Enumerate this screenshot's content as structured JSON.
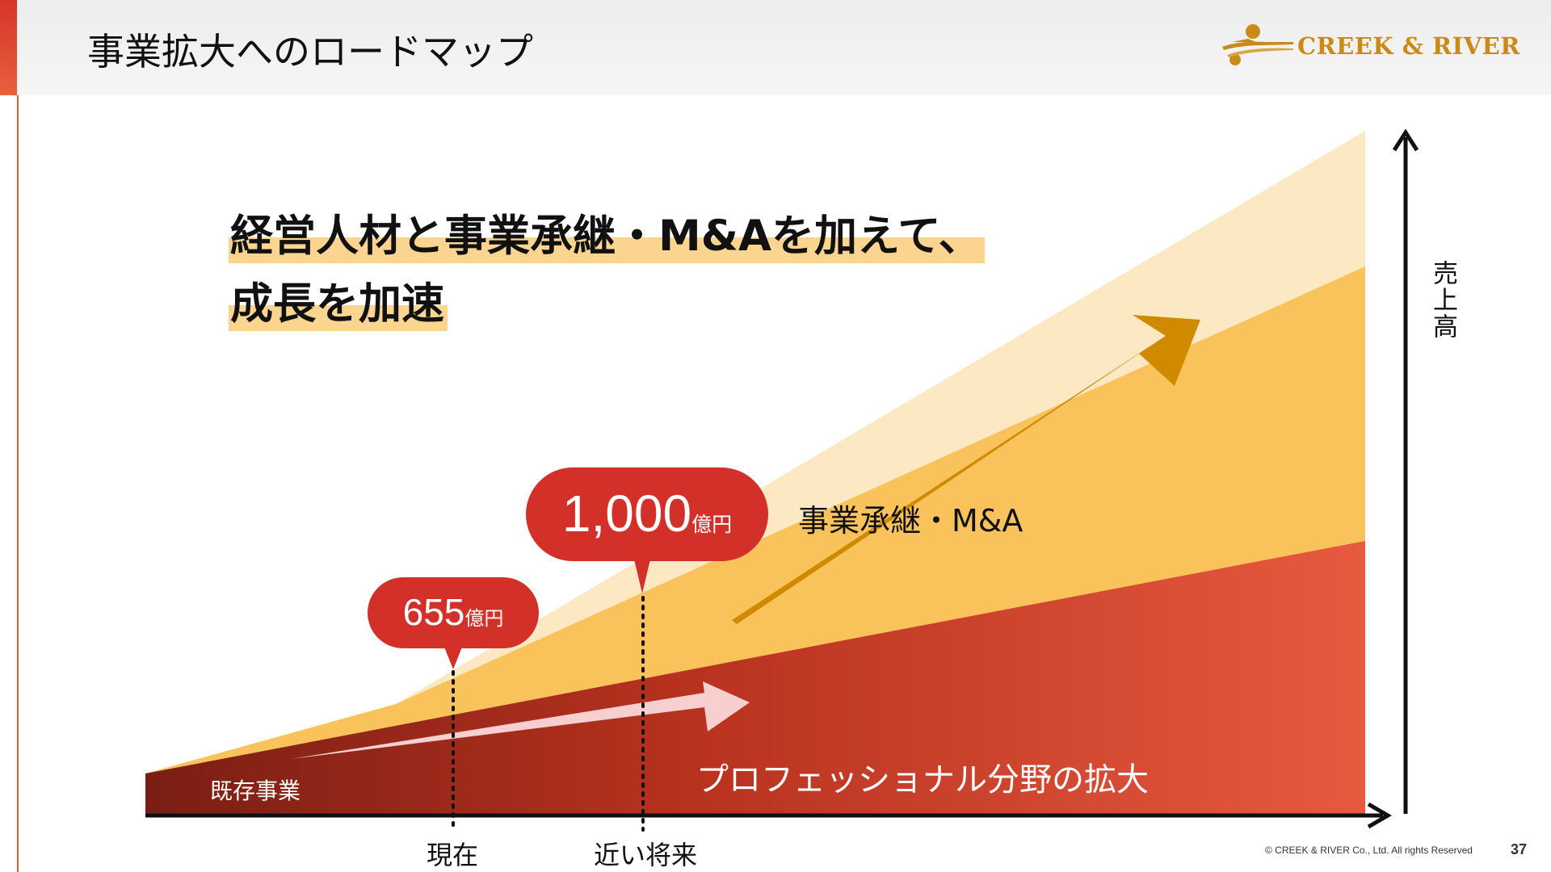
{
  "header": {
    "title": "事業拡大へのロードマップ",
    "logo_text": "CREEK & RIVER"
  },
  "headline": {
    "line1": "経営人材と事業承継・M&Aを加えて、",
    "line2": "成長を加速"
  },
  "diagram": {
    "y_axis_label": "売上高",
    "x_axis_labels": [
      "現在",
      "近い将来"
    ],
    "layers": {
      "existing": "既存事業",
      "professional": "プロフェッショナル分野の拡大",
      "mna": "事業承継・M&A"
    },
    "milestones": [
      {
        "value": "655",
        "unit": "億円"
      },
      {
        "value": "1,000",
        "unit": "億円"
      }
    ],
    "colors": {
      "existing_dark": "#7a1e14",
      "existing_light": "#e75a3f",
      "professional": "#f9c25a",
      "mna": "#fde8c4",
      "mna_arrow": "#d08a00",
      "bubble": "#d4302a"
    }
  },
  "footer": {
    "copyright": "© CREEK & RIVER Co., Ltd. All rights Reserved",
    "page_number": "37"
  }
}
